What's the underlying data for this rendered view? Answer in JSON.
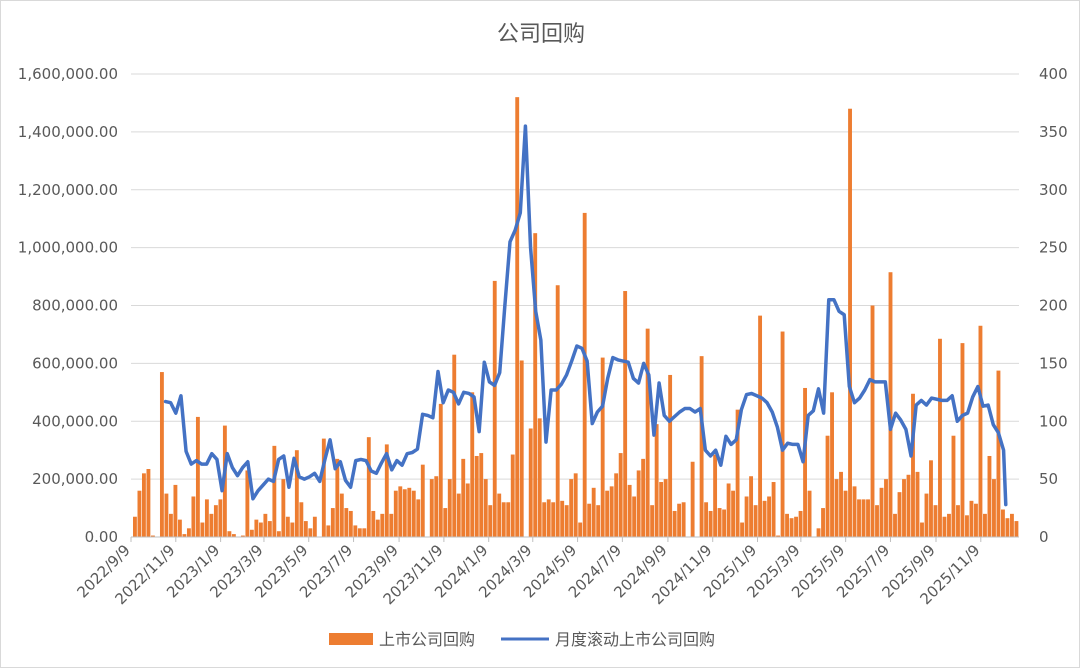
{
  "chart_data": {
    "type": "bar",
    "title": "公司回购",
    "xlabel": "",
    "ylabel": "",
    "colors": {
      "bars": "#ED7D31",
      "line": "#4472C4",
      "grid": "#D9D9D9",
      "text": "#595959"
    },
    "grid": true,
    "legend_position": "bottom",
    "ylim": [
      0,
      1600000
    ],
    "y_ticks": [
      "0.00",
      "200,000.00",
      "400,000.00",
      "600,000.00",
      "800,000.00",
      "1,000,000.00",
      "1,200,000.00",
      "1,400,000.00",
      "1,600,000.00"
    ],
    "y2lim": [
      0,
      400
    ],
    "y2_ticks": [
      "0",
      "50",
      "100",
      "150",
      "200",
      "250",
      "300",
      "350",
      "400"
    ],
    "x_tick_labels": [
      "2022/9/9",
      "2022/11/9",
      "2023/1/9",
      "2023/3/9",
      "2023/5/9",
      "2023/7/9",
      "2023/9/9",
      "2023/11/9",
      "2024/1/9",
      "2024/3/9",
      "2024/5/9",
      "2024/7/9",
      "2024/9/9",
      "2024/11/9",
      "2025/1/9",
      "2025/3/9",
      "2025/5/9",
      "2025/7/9",
      "2025/9/9",
      "2025/11/9"
    ],
    "x_start": "2022/9/9",
    "x_end": "2025/12/31",
    "series": [
      {
        "name": "上市公司回购",
        "axis": "left",
        "kind": "bar",
        "values": [
          70000,
          160000,
          220000,
          235000,
          5000,
          0,
          570000,
          150000,
          80000,
          180000,
          60000,
          10000,
          30000,
          140000,
          415000,
          50000,
          130000,
          80000,
          110000,
          130000,
          385000,
          20000,
          10000,
          0,
          5000,
          230000,
          25000,
          60000,
          50000,
          80000,
          55000,
          315000,
          20000,
          200000,
          70000,
          50000,
          300000,
          120000,
          55000,
          30000,
          70000,
          0,
          340000,
          40000,
          100000,
          270000,
          150000,
          100000,
          90000,
          40000,
          30000,
          30000,
          345000,
          90000,
          60000,
          80000,
          320000,
          80000,
          160000,
          175000,
          165000,
          170000,
          160000,
          130000,
          250000,
          0,
          200000,
          210000,
          460000,
          100000,
          200000,
          630000,
          150000,
          270000,
          185000,
          500000,
          280000,
          290000,
          200000,
          110000,
          885000,
          150000,
          120000,
          120000,
          285000,
          1520000,
          610000,
          0,
          375000,
          1050000,
          410000,
          120000,
          130000,
          120000,
          870000,
          125000,
          110000,
          200000,
          220000,
          50000,
          1120000,
          115000,
          170000,
          110000,
          620000,
          160000,
          175000,
          220000,
          290000,
          850000,
          180000,
          140000,
          230000,
          270000,
          720000,
          110000,
          390000,
          190000,
          200000,
          560000,
          90000,
          115000,
          120000,
          0,
          260000,
          0,
          625000,
          120000,
          90000,
          285000,
          100000,
          95000,
          185000,
          160000,
          440000,
          50000,
          140000,
          210000,
          110000,
          765000,
          125000,
          140000,
          190000,
          5000,
          710000,
          80000,
          65000,
          70000,
          90000,
          515000,
          160000,
          0,
          30000,
          100000,
          350000,
          500000,
          200000,
          225000,
          160000,
          1480000,
          175000,
          130000,
          130000,
          130000,
          800000,
          110000,
          170000,
          200000,
          915000,
          80000,
          155000,
          200000,
          215000,
          495000,
          225000,
          50000,
          150000,
          265000,
          110000,
          685000,
          70000,
          80000,
          350000,
          110000,
          670000,
          75000,
          125000,
          115000,
          730000,
          80000,
          280000,
          200000,
          575000,
          95000,
          65000,
          80000,
          55000
        ]
      },
      {
        "name": "月度滚动上市公司回购",
        "axis": "right",
        "kind": "line",
        "points": [
          [
            "2022/10/26",
            117
          ],
          [
            "2022/11/2",
            116
          ],
          [
            "2022/11/9",
            107
          ],
          [
            "2022/11/16",
            122
          ],
          [
            "2022/11/23",
            74
          ],
          [
            "2022/11/30",
            63
          ],
          [
            "2022/12/7",
            66
          ],
          [
            "2022/12/14",
            63
          ],
          [
            "2022/12/21",
            63
          ],
          [
            "2022/12/28",
            72
          ],
          [
            "2023/1/4",
            67
          ],
          [
            "2023/1/11",
            40
          ],
          [
            "2023/1/18",
            72
          ],
          [
            "2023/1/25",
            60
          ],
          [
            "2023/2/1",
            53
          ],
          [
            "2023/2/8",
            60
          ],
          [
            "2023/2/15",
            65
          ],
          [
            "2023/2/22",
            33
          ],
          [
            "2023/3/1",
            40
          ],
          [
            "2023/3/8",
            45
          ],
          [
            "2023/3/15",
            50
          ],
          [
            "2023/3/22",
            48
          ],
          [
            "2023/3/29",
            67
          ],
          [
            "2023/4/5",
            70
          ],
          [
            "2023/4/12",
            43
          ],
          [
            "2023/4/19",
            68
          ],
          [
            "2023/4/26",
            52
          ],
          [
            "2023/5/3",
            50
          ],
          [
            "2023/5/10",
            52
          ],
          [
            "2023/5/17",
            55
          ],
          [
            "2023/5/24",
            48
          ],
          [
            "2023/5/31",
            67
          ],
          [
            "2023/6/7",
            84
          ],
          [
            "2023/6/14",
            59
          ],
          [
            "2023/6/21",
            65
          ],
          [
            "2023/6/28",
            49
          ],
          [
            "2023/7/5",
            43
          ],
          [
            "2023/7/12",
            66
          ],
          [
            "2023/7/19",
            67
          ],
          [
            "2023/7/26",
            66
          ],
          [
            "2023/8/2",
            57
          ],
          [
            "2023/8/9",
            55
          ],
          [
            "2023/8/16",
            64
          ],
          [
            "2023/8/23",
            72
          ],
          [
            "2023/8/30",
            58
          ],
          [
            "2023/9/6",
            66
          ],
          [
            "2023/9/13",
            62
          ],
          [
            "2023/9/20",
            72
          ],
          [
            "2023/9/27",
            73
          ],
          [
            "2023/10/4",
            76
          ],
          [
            "2023/10/11",
            106
          ],
          [
            "2023/10/18",
            105
          ],
          [
            "2023/10/25",
            103
          ],
          [
            "2023/11/1",
            143
          ],
          [
            "2023/11/8",
            116
          ],
          [
            "2023/11/15",
            127
          ],
          [
            "2023/11/22",
            125
          ],
          [
            "2023/11/29",
            115
          ],
          [
            "2023/12/6",
            125
          ],
          [
            "2023/12/13",
            124
          ],
          [
            "2023/12/20",
            121
          ],
          [
            "2023/12/27",
            91
          ],
          [
            "2024/1/3",
            151
          ],
          [
            "2024/1/10",
            134
          ],
          [
            "2024/1/17",
            131
          ],
          [
            "2024/1/24",
            142
          ],
          [
            "2024/1/31",
            200
          ],
          [
            "2024/2/7",
            255
          ],
          [
            "2024/2/14",
            265
          ],
          [
            "2024/2/21",
            280
          ],
          [
            "2024/2/28",
            355
          ],
          [
            "2024/3/6",
            250
          ],
          [
            "2024/3/13",
            195
          ],
          [
            "2024/3/20",
            170
          ],
          [
            "2024/3/27",
            82
          ],
          [
            "2024/4/3",
            127
          ],
          [
            "2024/4/10",
            127
          ],
          [
            "2024/4/17",
            132
          ],
          [
            "2024/4/24",
            140
          ],
          [
            "2024/5/1",
            152
          ],
          [
            "2024/5/8",
            165
          ],
          [
            "2024/5/15",
            163
          ],
          [
            "2024/5/22",
            152
          ],
          [
            "2024/5/29",
            98
          ],
          [
            "2024/6/5",
            108
          ],
          [
            "2024/6/12",
            113
          ],
          [
            "2024/6/19",
            137
          ],
          [
            "2024/6/26",
            155
          ],
          [
            "2024/7/3",
            153
          ],
          [
            "2024/7/10",
            152
          ],
          [
            "2024/7/17",
            151
          ],
          [
            "2024/7/24",
            137
          ],
          [
            "2024/7/31",
            133
          ],
          [
            "2024/8/7",
            150
          ],
          [
            "2024/8/14",
            140
          ],
          [
            "2024/8/21",
            88
          ],
          [
            "2024/8/28",
            133
          ],
          [
            "2024/9/4",
            105
          ],
          [
            "2024/9/11",
            100
          ],
          [
            "2024/9/18",
            104
          ],
          [
            "2024/9/25",
            108
          ],
          [
            "2024/10/2",
            111
          ],
          [
            "2024/10/9",
            111
          ],
          [
            "2024/10/16",
            108
          ],
          [
            "2024/10/23",
            111
          ],
          [
            "2024/10/30",
            75
          ],
          [
            "2024/11/6",
            70
          ],
          [
            "2024/11/13",
            75
          ],
          [
            "2024/11/20",
            62
          ],
          [
            "2024/11/27",
            87
          ],
          [
            "2024/12/4",
            80
          ],
          [
            "2024/12/11",
            84
          ],
          [
            "2024/12/18",
            110
          ],
          [
            "2024/12/25",
            123
          ],
          [
            "2025/1/1",
            124
          ],
          [
            "2025/1/8",
            122
          ],
          [
            "2025/1/15",
            120
          ],
          [
            "2025/1/22",
            116
          ],
          [
            "2025/1/29",
            108
          ],
          [
            "2025/2/5",
            95
          ],
          [
            "2025/2/12",
            75
          ],
          [
            "2025/2/19",
            81
          ],
          [
            "2025/2/26",
            80
          ],
          [
            "2025/3/5",
            80
          ],
          [
            "2025/3/12",
            65
          ],
          [
            "2025/3/19",
            105
          ],
          [
            "2025/3/26",
            109
          ],
          [
            "2025/4/2",
            128
          ],
          [
            "2025/4/9",
            107
          ],
          [
            "2025/4/16",
            205
          ],
          [
            "2025/4/23",
            205
          ],
          [
            "2025/4/30",
            195
          ],
          [
            "2025/5/7",
            192
          ],
          [
            "2025/5/14",
            130
          ],
          [
            "2025/5/21",
            116
          ],
          [
            "2025/5/28",
            120
          ],
          [
            "2025/6/4",
            127
          ],
          [
            "2025/6/11",
            136
          ],
          [
            "2025/6/18",
            134
          ],
          [
            "2025/6/25",
            134
          ],
          [
            "2025/7/2",
            134
          ],
          [
            "2025/7/9",
            93
          ],
          [
            "2025/7/16",
            107
          ],
          [
            "2025/7/23",
            101
          ],
          [
            "2025/7/30",
            93
          ],
          [
            "2025/8/6",
            70
          ],
          [
            "2025/8/13",
            114
          ],
          [
            "2025/8/20",
            118
          ],
          [
            "2025/8/27",
            114
          ],
          [
            "2025/9/3",
            120
          ],
          [
            "2025/9/10",
            119
          ],
          [
            "2025/9/17",
            118
          ],
          [
            "2025/9/24",
            118
          ],
          [
            "2025/10/1",
            122
          ],
          [
            "2025/10/8",
            100
          ],
          [
            "2025/10/15",
            105
          ],
          [
            "2025/10/22",
            107
          ],
          [
            "2025/10/29",
            121
          ],
          [
            "2025/11/5",
            130
          ],
          [
            "2025/11/12",
            113
          ],
          [
            "2025/11/19",
            114
          ],
          [
            "2025/11/26",
            97
          ],
          [
            "2025/12/3",
            90
          ],
          [
            "2025/12/10",
            75
          ],
          [
            "2025/12/13",
            28
          ]
        ]
      }
    ]
  }
}
